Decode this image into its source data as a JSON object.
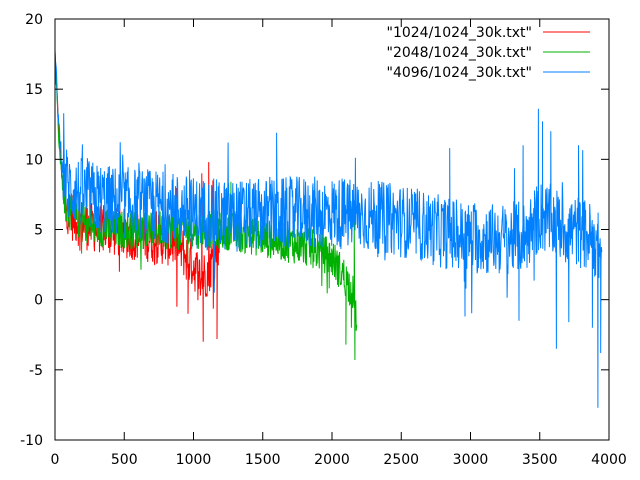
{
  "chart_data": {
    "type": "line",
    "title": "",
    "xlabel": "",
    "ylabel": "",
    "xlim": [
      0,
      4000
    ],
    "ylim": [
      -10,
      20
    ],
    "x_ticks": [
      0,
      500,
      1000,
      1500,
      2000,
      2500,
      3000,
      3500,
      4000
    ],
    "y_ticks": [
      -10,
      -5,
      0,
      5,
      10,
      15,
      20
    ],
    "grid": false,
    "legend_position": "top-right",
    "series": [
      {
        "name": "\"1024/1024_30k.txt\"",
        "color": "#ff0000",
        "x": [
          0,
          30,
          60,
          90,
          120,
          180,
          250,
          350,
          450,
          550,
          650,
          750,
          850,
          900,
          950,
          1000,
          1050,
          1100,
          1150,
          1200
        ],
        "y": [
          17.5,
          11.5,
          7.5,
          6.5,
          6.0,
          5.5,
          5.2,
          5.0,
          4.8,
          4.6,
          4.5,
          4.3,
          4.1,
          3.8,
          3.0,
          2.5,
          1.5,
          2.0,
          3.0,
          5.0
        ],
        "noise": 1.8,
        "dips": [
          [
            1070,
            -3.0
          ],
          [
            1170,
            -2.8
          ],
          [
            960,
            -1.0
          ],
          [
            880,
            -0.5
          ]
        ],
        "peaks": [
          [
            1110,
            9.8
          ],
          [
            1060,
            9.0
          ],
          [
            1140,
            8.5
          ]
        ]
      },
      {
        "name": "\"2048/1024_30k.txt\"",
        "color": "#00b000",
        "x": [
          0,
          30,
          60,
          90,
          150,
          250,
          400,
          600,
          800,
          1000,
          1200,
          1400,
          1600,
          1800,
          1900,
          2000,
          2050,
          2100,
          2150,
          2180
        ],
        "y": [
          17.5,
          11.0,
          7.5,
          6.5,
          5.8,
          5.3,
          5.0,
          5.0,
          5.0,
          5.0,
          5.0,
          4.6,
          4.2,
          3.8,
          3.5,
          3.0,
          2.2,
          1.5,
          0.5,
          -1.5
        ],
        "noise": 1.4,
        "dips": [
          [
            2165,
            -4.3
          ],
          [
            2100,
            -3.2
          ],
          [
            2140,
            -2.0
          ],
          [
            1980,
            0.8
          ]
        ],
        "peaks": [
          [
            1270,
            8.4
          ],
          [
            2160,
            5.5
          ]
        ]
      },
      {
        "name": "\"4096/1024_30k.txt\"",
        "color": "#0080ff",
        "x": [
          0,
          30,
          60,
          100,
          200,
          400,
          600,
          800,
          1000,
          1200,
          1400,
          1600,
          1800,
          2000,
          2200,
          2400,
          2600,
          2800,
          3000,
          3200,
          3400,
          3500,
          3600,
          3700,
          3800,
          3900,
          3950
        ],
        "y": [
          17.5,
          12.0,
          9.0,
          8.0,
          7.5,
          7.0,
          6.8,
          6.6,
          6.2,
          6.0,
          6.0,
          6.1,
          6.2,
          6.2,
          6.0,
          5.8,
          5.4,
          4.8,
          4.4,
          4.3,
          4.5,
          6.0,
          5.5,
          5.0,
          4.8,
          4.2,
          3.0
        ],
        "noise": 2.6,
        "dips": [
          [
            3920,
            -7.7
          ],
          [
            3940,
            -3.8
          ],
          [
            3620,
            -3.5
          ],
          [
            3880,
            -2.0
          ],
          [
            3350,
            -1.5
          ],
          [
            3710,
            -1.6
          ],
          [
            2960,
            -1.2
          ],
          [
            1150,
            0.5
          ]
        ],
        "peaks": [
          [
            3490,
            13.6
          ],
          [
            3520,
            12.7
          ],
          [
            3580,
            12.0
          ],
          [
            1600,
            11.9
          ],
          [
            3780,
            11.0
          ],
          [
            2850,
            10.8
          ],
          [
            1250,
            11.2
          ],
          [
            3380,
            11.0
          ]
        ]
      }
    ]
  }
}
